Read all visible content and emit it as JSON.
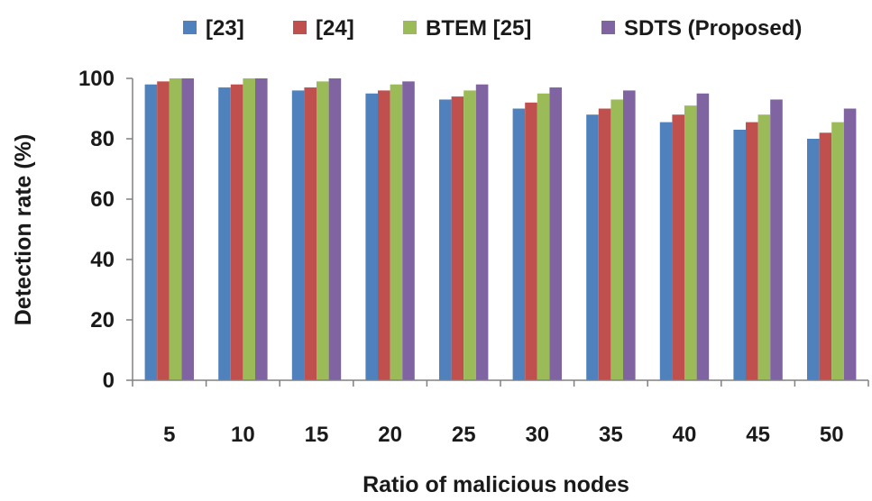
{
  "chart_data": {
    "type": "bar",
    "title": "",
    "xlabel": "Ratio of malicious nodes",
    "ylabel": "Detection rate (%)",
    "categories": [
      "5",
      "10",
      "15",
      "20",
      "25",
      "30",
      "35",
      "40",
      "45",
      "50"
    ],
    "ylim": [
      0,
      100
    ],
    "yticks": [
      0,
      20,
      40,
      60,
      80,
      100
    ],
    "grid": false,
    "legend_position": "top",
    "series": [
      {
        "name": "[23]",
        "color": "#4f81bd",
        "values": [
          98,
          97,
          96,
          95,
          93,
          90,
          88,
          85.5,
          83,
          80
        ]
      },
      {
        "name": "[24]",
        "color": "#c0504d",
        "values": [
          99,
          98,
          97,
          96,
          94,
          92,
          90,
          88,
          85.5,
          82
        ]
      },
      {
        "name": "BTEM [25]",
        "color": "#9bbb59",
        "values": [
          100,
          100,
          99,
          98,
          96,
          95,
          93,
          91,
          88,
          85.5
        ]
      },
      {
        "name": "SDTS (Proposed)",
        "color": "#8064a2",
        "values": [
          100,
          100,
          100,
          99,
          98,
          97,
          96,
          95,
          93,
          90
        ]
      }
    ]
  }
}
